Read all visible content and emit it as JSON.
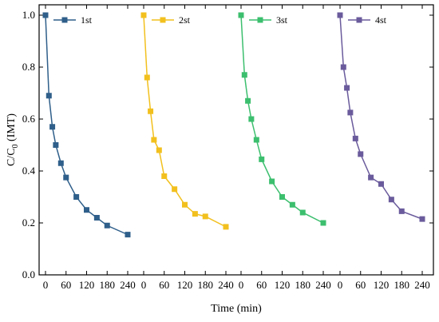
{
  "chart_data": {
    "type": "line",
    "xlabel": "Time (min)",
    "ylabel": "C/C0 (IMT)",
    "ylabel_main": "C/C",
    "ylabel_sub": "0",
    "ylabel_suffix": " (IMT)",
    "ylim": [
      0.0,
      1.04
    ],
    "yticks": [
      0.0,
      0.2,
      0.4,
      0.6,
      0.8,
      1.0
    ],
    "ytick_labels": [
      "0.0",
      "0.2",
      "0.4",
      "0.6",
      "0.8",
      "1.0"
    ],
    "xticks": [
      0,
      60,
      120,
      180,
      240
    ],
    "xtick_labels": [
      "0",
      "60",
      "120",
      "180",
      "240"
    ],
    "grid": false,
    "legend_placement": "inline-top",
    "series": [
      {
        "name": "1st",
        "color": "#2f5f8a",
        "marker": "square",
        "x": [
          0,
          10,
          20,
          30,
          45,
          60,
          90,
          120,
          150,
          180,
          240
        ],
        "y": [
          1.0,
          0.69,
          0.57,
          0.5,
          0.43,
          0.375,
          0.3,
          0.25,
          0.22,
          0.19,
          0.155
        ]
      },
      {
        "name": "2st",
        "color": "#f2c01e",
        "marker": "square",
        "x": [
          0,
          10,
          20,
          30,
          45,
          60,
          90,
          120,
          150,
          180,
          240
        ],
        "y": [
          1.0,
          0.76,
          0.63,
          0.52,
          0.48,
          0.38,
          0.33,
          0.27,
          0.235,
          0.225,
          0.185
        ]
      },
      {
        "name": "3st",
        "color": "#3cbf6e",
        "marker": "square",
        "x": [
          0,
          10,
          20,
          30,
          45,
          60,
          90,
          120,
          150,
          180,
          240
        ],
        "y": [
          1.0,
          0.77,
          0.67,
          0.6,
          0.52,
          0.445,
          0.36,
          0.3,
          0.27,
          0.24,
          0.2
        ]
      },
      {
        "name": "4st",
        "color": "#6a5b9c",
        "marker": "square",
        "x": [
          0,
          10,
          20,
          30,
          45,
          60,
          90,
          120,
          150,
          180,
          240
        ],
        "y": [
          1.0,
          0.8,
          0.72,
          0.625,
          0.525,
          0.465,
          0.375,
          0.35,
          0.29,
          0.245,
          0.215
        ]
      }
    ]
  }
}
